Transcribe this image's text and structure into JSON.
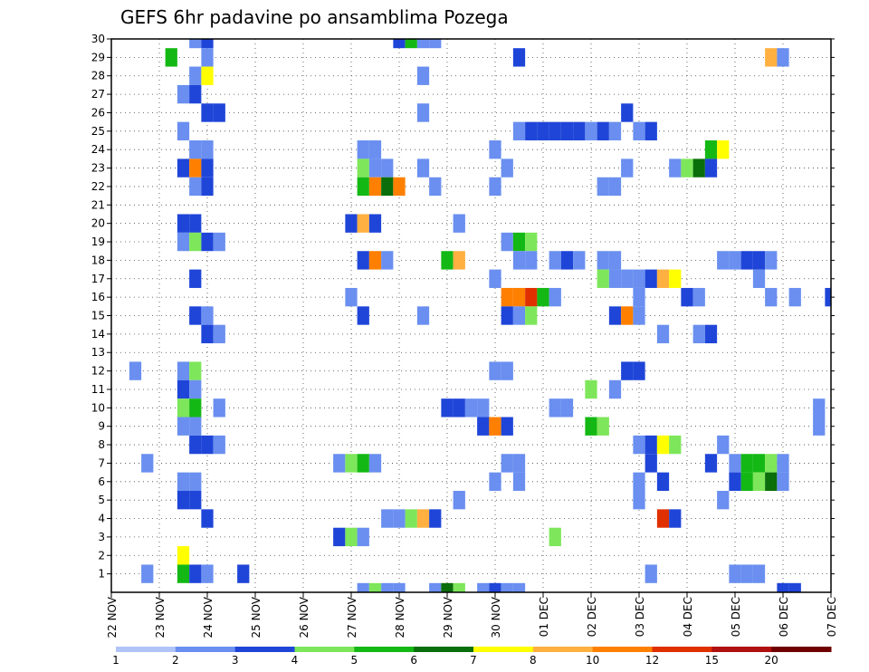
{
  "chart_data": {
    "type": "heatmap",
    "title": "GEFS 6hr padavine po ansamblima Pozega",
    "xlabel": "",
    "ylabel": "",
    "x_range": [
      0,
      60
    ],
    "y_range": [
      0,
      30
    ],
    "x_ticks": [
      {
        "label": "22 NOV",
        "value": 0
      },
      {
        "label": "23 NOV",
        "value": 4
      },
      {
        "label": "24 NOV",
        "value": 8
      },
      {
        "label": "25 NOV",
        "value": 12
      },
      {
        "label": "26 NOV",
        "value": 16
      },
      {
        "label": "27 NOV",
        "value": 20
      },
      {
        "label": "28 NOV",
        "value": 24
      },
      {
        "label": "29 NOV",
        "value": 28
      },
      {
        "label": "30 NOV",
        "value": 32
      },
      {
        "label": "01 DEC",
        "value": 36
      },
      {
        "label": "02 DEC",
        "value": 40
      },
      {
        "label": "03 DEC",
        "value": 44
      },
      {
        "label": "04 DEC",
        "value": 48
      },
      {
        "label": "05 DEC",
        "value": 52
      },
      {
        "label": "06 DEC",
        "value": 56
      },
      {
        "label": "07 DEC",
        "value": 60
      }
    ],
    "y_ticks": [
      1,
      2,
      3,
      4,
      5,
      6,
      7,
      8,
      9,
      10,
      11,
      12,
      13,
      14,
      15,
      16,
      17,
      18,
      19,
      20,
      21,
      22,
      23,
      24,
      25,
      26,
      27,
      28,
      29,
      30
    ],
    "grid": true,
    "colorbar": {
      "placement": "bottom",
      "labels": [
        "1",
        "2",
        "3",
        "4",
        "5",
        "6",
        "7",
        "8",
        "10",
        "12",
        "15",
        "20"
      ],
      "colors": [
        "#b0c4f8",
        "#6a8ff0",
        "#1f45d8",
        "#7ee65a",
        "#14b814",
        "#0a6e0a",
        "#ffff00",
        "#ffb040",
        "#ff8000",
        "#e03000",
        "#b01010",
        "#700000"
      ]
    },
    "cells": [
      [
        7,
        30,
        1
      ],
      [
        8,
        30,
        2
      ],
      [
        24,
        30,
        2
      ],
      [
        25,
        30,
        4
      ],
      [
        26,
        30,
        1
      ],
      [
        27,
        30,
        1
      ],
      [
        5,
        29,
        4
      ],
      [
        8,
        29,
        1
      ],
      [
        34,
        29,
        2
      ],
      [
        55,
        29,
        7
      ],
      [
        56,
        29,
        1
      ],
      [
        7,
        28,
        1
      ],
      [
        8,
        28,
        6
      ],
      [
        26,
        28,
        1
      ],
      [
        6,
        27,
        1
      ],
      [
        7,
        27,
        2
      ],
      [
        8,
        26,
        2
      ],
      [
        9,
        26,
        2
      ],
      [
        26,
        26,
        1
      ],
      [
        43,
        26,
        2
      ],
      [
        6,
        25,
        1
      ],
      [
        34,
        25,
        1
      ],
      [
        35,
        25,
        2
      ],
      [
        36,
        25,
        2
      ],
      [
        37,
        25,
        2
      ],
      [
        38,
        25,
        2
      ],
      [
        39,
        25,
        2
      ],
      [
        40,
        25,
        1
      ],
      [
        41,
        25,
        2
      ],
      [
        42,
        25,
        1
      ],
      [
        44,
        25,
        1
      ],
      [
        45,
        25,
        2
      ],
      [
        7,
        24,
        1
      ],
      [
        8,
        24,
        1
      ],
      [
        21,
        24,
        1
      ],
      [
        22,
        24,
        1
      ],
      [
        32,
        24,
        1
      ],
      [
        50,
        24,
        4
      ],
      [
        51,
        24,
        6
      ],
      [
        6,
        23,
        2
      ],
      [
        7,
        23,
        8
      ],
      [
        8,
        23,
        2
      ],
      [
        21,
        23,
        3
      ],
      [
        22,
        23,
        1
      ],
      [
        23,
        23,
        1
      ],
      [
        26,
        23,
        1
      ],
      [
        33,
        23,
        1
      ],
      [
        43,
        23,
        1
      ],
      [
        47,
        23,
        1
      ],
      [
        48,
        23,
        3
      ],
      [
        49,
        23,
        5
      ],
      [
        50,
        23,
        2
      ],
      [
        7,
        22,
        1
      ],
      [
        8,
        22,
        2
      ],
      [
        21,
        22,
        4
      ],
      [
        22,
        22,
        8
      ],
      [
        23,
        22,
        5
      ],
      [
        24,
        22,
        8
      ],
      [
        27,
        22,
        1
      ],
      [
        32,
        22,
        1
      ],
      [
        41,
        22,
        1
      ],
      [
        42,
        22,
        1
      ],
      [
        6,
        20,
        2
      ],
      [
        7,
        20,
        2
      ],
      [
        20,
        20,
        2
      ],
      [
        21,
        20,
        7
      ],
      [
        22,
        20,
        2
      ],
      [
        29,
        20,
        1
      ],
      [
        6,
        19,
        1
      ],
      [
        7,
        19,
        3
      ],
      [
        8,
        19,
        2
      ],
      [
        9,
        19,
        1
      ],
      [
        33,
        19,
        1
      ],
      [
        34,
        19,
        4
      ],
      [
        35,
        19,
        3
      ],
      [
        21,
        18,
        2
      ],
      [
        22,
        18,
        8
      ],
      [
        23,
        18,
        1
      ],
      [
        28,
        18,
        4
      ],
      [
        29,
        18,
        7
      ],
      [
        34,
        18,
        1
      ],
      [
        35,
        18,
        1
      ],
      [
        37,
        18,
        1
      ],
      [
        38,
        18,
        2
      ],
      [
        39,
        18,
        1
      ],
      [
        41,
        18,
        1
      ],
      [
        42,
        18,
        1
      ],
      [
        51,
        18,
        1
      ],
      [
        52,
        18,
        1
      ],
      [
        53,
        18,
        2
      ],
      [
        54,
        18,
        2
      ],
      [
        55,
        18,
        1
      ],
      [
        7,
        17,
        2
      ],
      [
        32,
        17,
        1
      ],
      [
        41,
        17,
        3
      ],
      [
        42,
        17,
        1
      ],
      [
        43,
        17,
        1
      ],
      [
        44,
        17,
        1
      ],
      [
        45,
        17,
        2
      ],
      [
        46,
        17,
        7
      ],
      [
        47,
        17,
        6
      ],
      [
        54,
        17,
        1
      ],
      [
        20,
        16,
        1
      ],
      [
        33,
        16,
        8
      ],
      [
        34,
        16,
        8
      ],
      [
        35,
        16,
        9
      ],
      [
        36,
        16,
        4
      ],
      [
        37,
        16,
        1
      ],
      [
        44,
        16,
        1
      ],
      [
        48,
        16,
        2
      ],
      [
        49,
        16,
        1
      ],
      [
        55,
        16,
        1
      ],
      [
        57,
        16,
        1
      ],
      [
        60,
        16,
        2
      ],
      [
        7,
        15,
        2
      ],
      [
        8,
        15,
        1
      ],
      [
        21,
        15,
        2
      ],
      [
        26,
        15,
        1
      ],
      [
        33,
        15,
        2
      ],
      [
        34,
        15,
        1
      ],
      [
        35,
        15,
        3
      ],
      [
        42,
        15,
        2
      ],
      [
        43,
        15,
        8
      ],
      [
        44,
        15,
        1
      ],
      [
        8,
        14,
        2
      ],
      [
        9,
        14,
        1
      ],
      [
        46,
        14,
        1
      ],
      [
        49,
        14,
        1
      ],
      [
        50,
        14,
        2
      ],
      [
        2,
        12,
        1
      ],
      [
        6,
        12,
        1
      ],
      [
        7,
        12,
        3
      ],
      [
        32,
        12,
        1
      ],
      [
        33,
        12,
        1
      ],
      [
        43,
        12,
        2
      ],
      [
        44,
        12,
        2
      ],
      [
        6,
        11,
        2
      ],
      [
        7,
        11,
        1
      ],
      [
        40,
        11,
        3
      ],
      [
        42,
        11,
        1
      ],
      [
        6,
        10,
        3
      ],
      [
        7,
        10,
        4
      ],
      [
        9,
        10,
        1
      ],
      [
        28,
        10,
        2
      ],
      [
        29,
        10,
        2
      ],
      [
        30,
        10,
        1
      ],
      [
        31,
        10,
        1
      ],
      [
        37,
        10,
        1
      ],
      [
        38,
        10,
        1
      ],
      [
        59,
        10,
        1
      ],
      [
        6,
        9,
        1
      ],
      [
        7,
        9,
        1
      ],
      [
        31,
        9,
        2
      ],
      [
        32,
        9,
        8
      ],
      [
        33,
        9,
        2
      ],
      [
        40,
        9,
        4
      ],
      [
        41,
        9,
        3
      ],
      [
        59,
        9,
        1
      ],
      [
        7,
        8,
        2
      ],
      [
        8,
        8,
        2
      ],
      [
        9,
        8,
        1
      ],
      [
        44,
        8,
        1
      ],
      [
        45,
        8,
        2
      ],
      [
        46,
        8,
        6
      ],
      [
        47,
        8,
        3
      ],
      [
        51,
        8,
        1
      ],
      [
        3,
        7,
        1
      ],
      [
        19,
        7,
        1
      ],
      [
        20,
        7,
        3
      ],
      [
        21,
        7,
        4
      ],
      [
        22,
        7,
        1
      ],
      [
        33,
        7,
        1
      ],
      [
        34,
        7,
        1
      ],
      [
        45,
        7,
        2
      ],
      [
        50,
        7,
        2
      ],
      [
        52,
        7,
        1
      ],
      [
        53,
        7,
        4
      ],
      [
        54,
        7,
        4
      ],
      [
        55,
        7,
        3
      ],
      [
        56,
        7,
        1
      ],
      [
        6,
        6,
        1
      ],
      [
        7,
        6,
        1
      ],
      [
        32,
        6,
        1
      ],
      [
        34,
        6,
        1
      ],
      [
        44,
        6,
        1
      ],
      [
        46,
        6,
        2
      ],
      [
        52,
        6,
        2
      ],
      [
        53,
        6,
        4
      ],
      [
        54,
        6,
        3
      ],
      [
        55,
        6,
        5
      ],
      [
        56,
        6,
        1
      ],
      [
        6,
        5,
        2
      ],
      [
        7,
        5,
        2
      ],
      [
        29,
        5,
        1
      ],
      [
        44,
        5,
        1
      ],
      [
        51,
        5,
        1
      ],
      [
        8,
        4,
        2
      ],
      [
        23,
        4,
        1
      ],
      [
        24,
        4,
        1
      ],
      [
        25,
        4,
        3
      ],
      [
        26,
        4,
        7
      ],
      [
        27,
        4,
        2
      ],
      [
        46,
        4,
        9
      ],
      [
        47,
        4,
        2
      ],
      [
        19,
        3,
        2
      ],
      [
        20,
        3,
        3
      ],
      [
        21,
        3,
        1
      ],
      [
        37,
        3,
        3
      ],
      [
        6,
        2,
        6
      ],
      [
        3,
        1,
        1
      ],
      [
        6,
        1,
        4
      ],
      [
        7,
        1,
        2
      ],
      [
        8,
        1,
        1
      ],
      [
        11,
        1,
        2
      ],
      [
        45,
        1,
        1
      ],
      [
        52,
        1,
        1
      ],
      [
        53,
        1,
        1
      ],
      [
        54,
        1,
        1
      ],
      [
        21,
        0,
        1
      ],
      [
        22,
        0,
        3
      ],
      [
        23,
        0,
        1
      ],
      [
        24,
        0,
        1
      ],
      [
        27,
        0,
        1
      ],
      [
        28,
        0,
        5
      ],
      [
        29,
        0,
        3
      ],
      [
        31,
        0,
        1
      ],
      [
        32,
        0,
        2
      ],
      [
        33,
        0,
        1
      ],
      [
        34,
        0,
        1
      ],
      [
        56,
        0,
        2
      ],
      [
        57,
        0,
        2
      ]
    ]
  }
}
